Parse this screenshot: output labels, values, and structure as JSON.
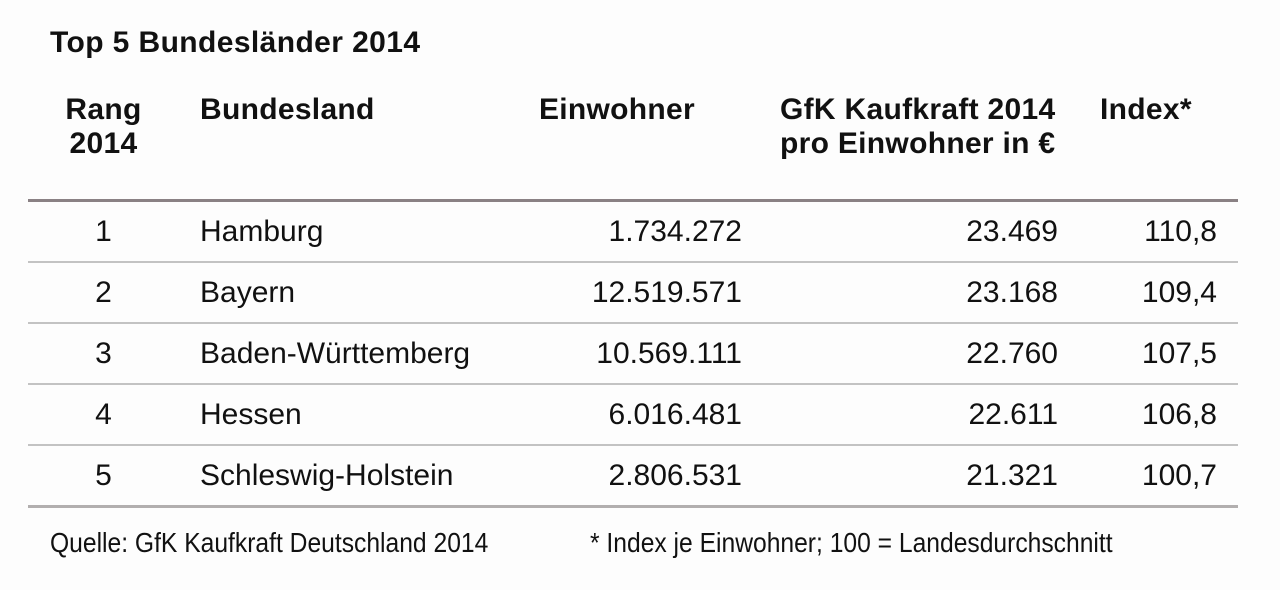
{
  "title": "Top 5 Bundesländer 2014",
  "chart_data": {
    "type": "table",
    "title": "Top 5 Bundesländer 2014",
    "columns": [
      {
        "key": "rang",
        "line1": "Rang",
        "line2": "2014"
      },
      {
        "key": "bundesland",
        "line1": "Bundesland",
        "line2": ""
      },
      {
        "key": "einwohner",
        "line1": "Einwohner",
        "line2": ""
      },
      {
        "key": "kaufkraft",
        "line1": "GfK Kaufkraft 2014",
        "line2": "pro Einwohner in €"
      },
      {
        "key": "index",
        "line1": "Index*",
        "line2": ""
      }
    ],
    "rows": [
      {
        "rang": "1",
        "bundesland": "Hamburg",
        "einwohner": "1.734.272",
        "kaufkraft": "23.469",
        "index": "110,8"
      },
      {
        "rang": "2",
        "bundesland": "Bayern",
        "einwohner": "12.519.571",
        "kaufkraft": "23.168",
        "index": "109,4"
      },
      {
        "rang": "3",
        "bundesland": "Baden-Württemberg",
        "einwohner": "10.569.111",
        "kaufkraft": "22.760",
        "index": "107,5"
      },
      {
        "rang": "4",
        "bundesland": "Hessen",
        "einwohner": "6.016.481",
        "kaufkraft": "22.611",
        "index": "106,8"
      },
      {
        "rang": "5",
        "bundesland": "Schleswig-Holstein",
        "einwohner": "2.806.531",
        "kaufkraft": "21.321",
        "index": "100,7"
      }
    ],
    "footer": {
      "source": "Quelle: GfK Kaufkraft Deutschland 2014",
      "footnote": "* Index je Einwohner; 100 = Landesdurchschnitt"
    }
  },
  "colors": {
    "text": "#111111",
    "background": "#fdfdfd",
    "header_rule": "#8a8184",
    "row_rule": "#c3c3c3",
    "bottom_rule": "#b2afaf"
  }
}
